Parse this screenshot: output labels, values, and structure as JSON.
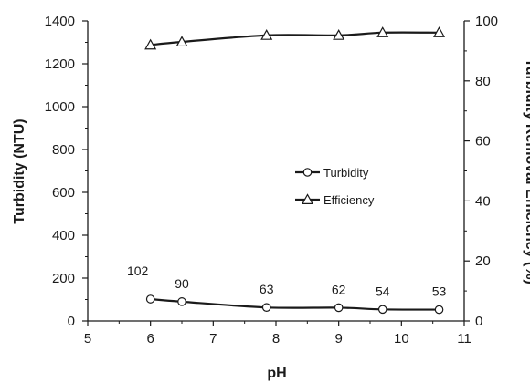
{
  "chart_data": {
    "type": "line",
    "title": "",
    "xlabel": "pH",
    "ylabel": "Turbidity (NTU)",
    "y2label": "Turbidity Removal Efficiency (%)",
    "xlim": [
      5,
      11
    ],
    "ylim": [
      0,
      1400
    ],
    "y2lim": [
      0,
      100
    ],
    "xticks": [
      "5",
      "6",
      "7",
      "8",
      "9",
      "10",
      "11"
    ],
    "yticks": [
      "0",
      "200",
      "400",
      "600",
      "800",
      "1000",
      "1200",
      "1400"
    ],
    "y2ticks": [
      "0",
      "20",
      "40",
      "60",
      "80",
      "100"
    ],
    "grid": false,
    "legend_position": "center-right",
    "series": [
      {
        "name": "Turbidity",
        "axis": "left",
        "marker": "circle",
        "color": "#1a1a1a",
        "x": [
          6.0,
          6.5,
          7.85,
          9.0,
          9.7,
          10.6
        ],
        "values": [
          102,
          90,
          63,
          62,
          54,
          53
        ],
        "labels": [
          "102",
          "90",
          "63",
          "62",
          "54",
          "53"
        ]
      },
      {
        "name": "Efficiency",
        "axis": "right",
        "marker": "triangle",
        "color": "#1a1a1a",
        "x": [
          6.0,
          6.5,
          7.85,
          9.0,
          9.7,
          10.6
        ],
        "values": [
          92,
          93,
          95.2,
          95.2,
          96.1,
          96.1
        ]
      }
    ]
  }
}
